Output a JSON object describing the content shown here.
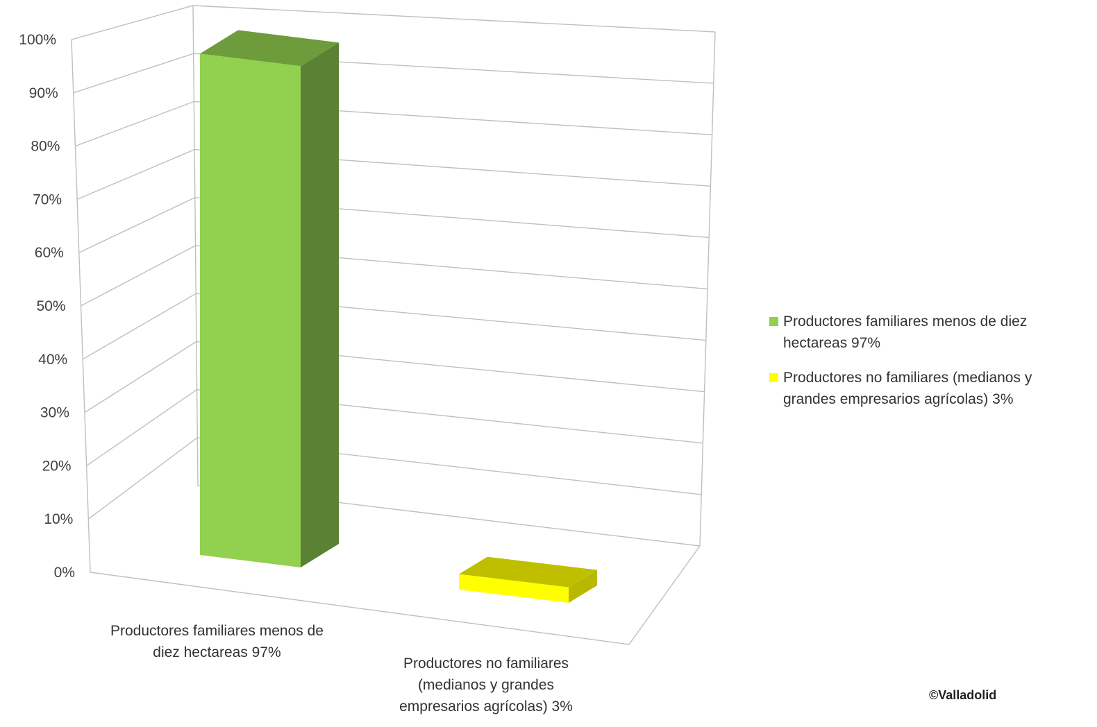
{
  "chart_data": {
    "type": "bar",
    "categories": [
      "Productores familiares  menos de diez hectareas  97%",
      "Productores no familiares  (medianos y grandes empresarios agrícolas)  3%"
    ],
    "values": [
      97,
      3
    ],
    "colors": [
      "#92d050",
      "#ffff00"
    ],
    "ylim": [
      0,
      100
    ],
    "yticks": [
      "0%",
      "10%",
      "20%",
      "30%",
      "40%",
      "50%",
      "60%",
      "70%",
      "80%",
      "90%",
      "100%"
    ],
    "grid": true,
    "legend": "right",
    "style": "3d-column"
  },
  "credit": "©Valladolid"
}
